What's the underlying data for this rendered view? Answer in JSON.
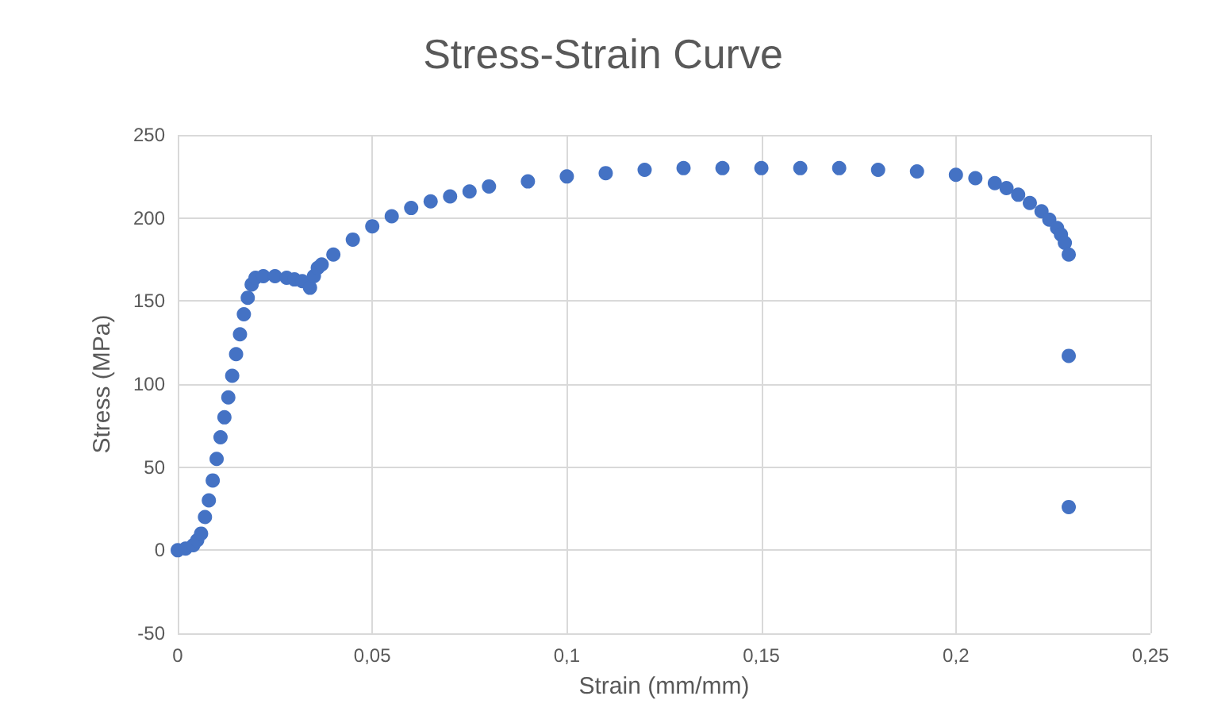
{
  "chart_data": {
    "type": "scatter",
    "title": "Stress-Strain Curve",
    "xlabel": "Strain (mm/mm)",
    "ylabel": "Stress (MPa)",
    "x": [
      0,
      0.002,
      0.004,
      0.005,
      0.006,
      0.007,
      0.008,
      0.009,
      0.01,
      0.011,
      0.012,
      0.013,
      0.014,
      0.015,
      0.016,
      0.017,
      0.018,
      0.019,
      0.02,
      0.022,
      0.025,
      0.028,
      0.03,
      0.032,
      0.034,
      0.035,
      0.036,
      0.037,
      0.04,
      0.045,
      0.05,
      0.055,
      0.06,
      0.065,
      0.07,
      0.075,
      0.08,
      0.09,
      0.1,
      0.11,
      0.12,
      0.13,
      0.14,
      0.15,
      0.16,
      0.17,
      0.18,
      0.19,
      0.2,
      0.205,
      0.21,
      0.213,
      0.216,
      0.219,
      0.222,
      0.224,
      0.226,
      0.227,
      0.228,
      0.229,
      0.229,
      0.229
    ],
    "values": [
      0,
      1,
      3,
      6,
      10,
      20,
      30,
      42,
      55,
      68,
      80,
      92,
      105,
      118,
      130,
      142,
      152,
      160,
      164,
      165,
      165,
      164,
      163,
      162,
      158,
      165,
      170,
      172,
      178,
      187,
      195,
      201,
      206,
      210,
      213,
      216,
      219,
      222,
      225,
      227,
      229,
      230,
      230,
      230,
      230,
      230,
      229,
      228,
      226,
      224,
      221,
      218,
      214,
      209,
      204,
      199,
      194,
      190,
      185,
      178,
      117,
      26
    ],
    "color": "#4472c4",
    "marker": "circle",
    "xlim": [
      0,
      0.25
    ],
    "xticks": [
      0,
      {
        "value": 0.05,
        "label": "0,05"
      },
      {
        "value": 0.1,
        "label": "0,1"
      },
      {
        "value": 0.15,
        "label": "0,15"
      },
      {
        "value": 0.2,
        "label": "0,2"
      },
      {
        "value": 0.25,
        "label": "0,25"
      }
    ],
    "ylim": [
      -50,
      250
    ],
    "yticks": [
      -50,
      0,
      50,
      100,
      150,
      200,
      250
    ],
    "grid": true
  }
}
